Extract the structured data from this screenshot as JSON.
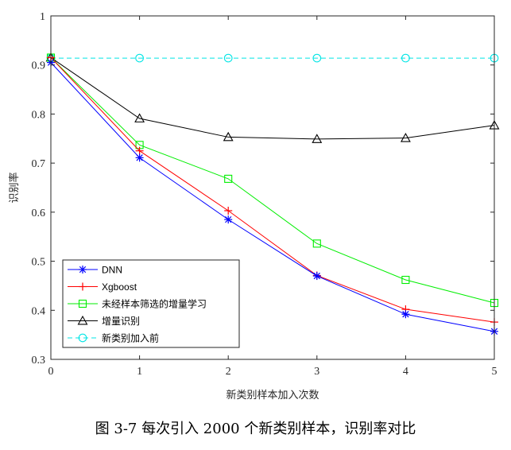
{
  "figure_caption": "图 3-7 每次引入 2000 个新类别样本，识别率对比",
  "chart_data": {
    "type": "line",
    "xlabel": "新类别样本加入次数",
    "ylabel": "识别率",
    "x": [
      0,
      1,
      2,
      3,
      4,
      5
    ],
    "xlim": [
      0,
      5
    ],
    "ylim": [
      0.3,
      1.0
    ],
    "xticks": [
      "0",
      "1",
      "2",
      "3",
      "4",
      "5"
    ],
    "yticks": [
      "0.3",
      "0.4",
      "0.5",
      "0.6",
      "0.7",
      "0.8",
      "0.9",
      "1"
    ],
    "grid": false,
    "legend_position": "bottom-left",
    "series": [
      {
        "name": "DNN",
        "color": "#0000ff",
        "marker": "asterisk",
        "line": "solid",
        "values": [
          0.905,
          0.711,
          0.585,
          0.47,
          0.392,
          0.357
        ]
      },
      {
        "name": "Xgboost",
        "color": "#ff0000",
        "marker": "plus",
        "line": "solid",
        "values": [
          0.915,
          0.725,
          0.603,
          0.471,
          0.402,
          0.376
        ]
      },
      {
        "name": "未经样本筛选的增量学习",
        "color": "#00ee00",
        "marker": "square",
        "line": "solid",
        "values": [
          0.915,
          0.737,
          0.668,
          0.536,
          0.462,
          0.415
        ]
      },
      {
        "name": "增量识别",
        "color": "#000000",
        "marker": "triangle",
        "line": "solid",
        "values": [
          0.915,
          0.791,
          0.753,
          0.749,
          0.751,
          0.777
        ]
      },
      {
        "name": "新类别加入前",
        "color": "#00e5e5",
        "marker": "circle",
        "line": "dashed",
        "values": [
          0.914,
          0.914,
          0.914,
          0.914,
          0.914,
          0.914
        ]
      }
    ]
  }
}
